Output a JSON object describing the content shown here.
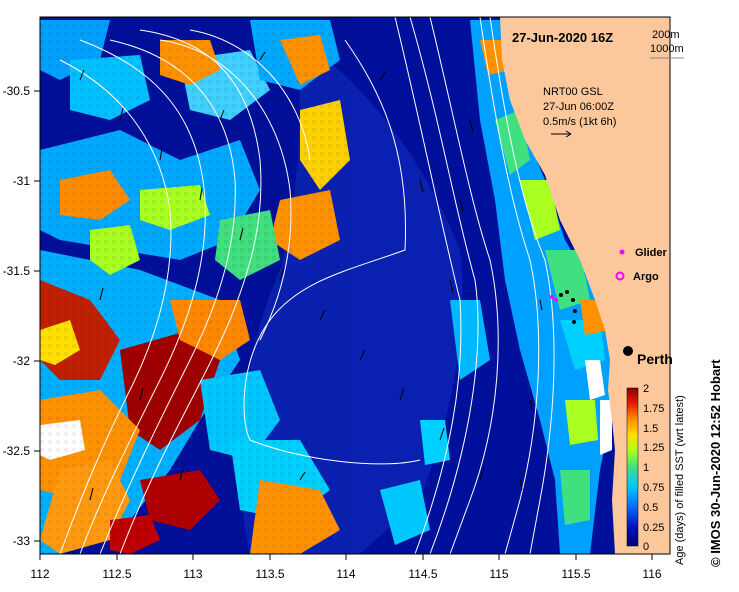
{
  "map": {
    "title": "27-Jun-2020 16Z",
    "contour_legend": [
      "200m",
      "1000m"
    ],
    "current": {
      "product": "NRT00 GSL",
      "time": "27-Jun 06:00Z",
      "scale": "0.5m/s (1kt 6h)"
    },
    "legend": {
      "glider": "Glider",
      "argo": "Argo"
    },
    "place": "Perth",
    "lon_ticks": [
      "112",
      "112.5",
      "113",
      "113.5",
      "114",
      "114.5",
      "115",
      "115.5",
      "116"
    ],
    "lat_ticks": [
      "-30.5",
      "-31",
      "-31.5",
      "-32",
      "-32.5",
      "-33"
    ],
    "colorbar": {
      "title": "Age (days) of filled SST (wrt latest)",
      "ticks": [
        "2",
        "1.75",
        "1.5",
        "1.25",
        "1",
        "0.75",
        "0.5",
        "0.25",
        "0"
      ]
    },
    "credit": "© IMOS 30-Jun-2020 12:52 Hobart",
    "colors": {
      "deep_blue": "#00109a",
      "land": "#fcc89b"
    }
  }
}
